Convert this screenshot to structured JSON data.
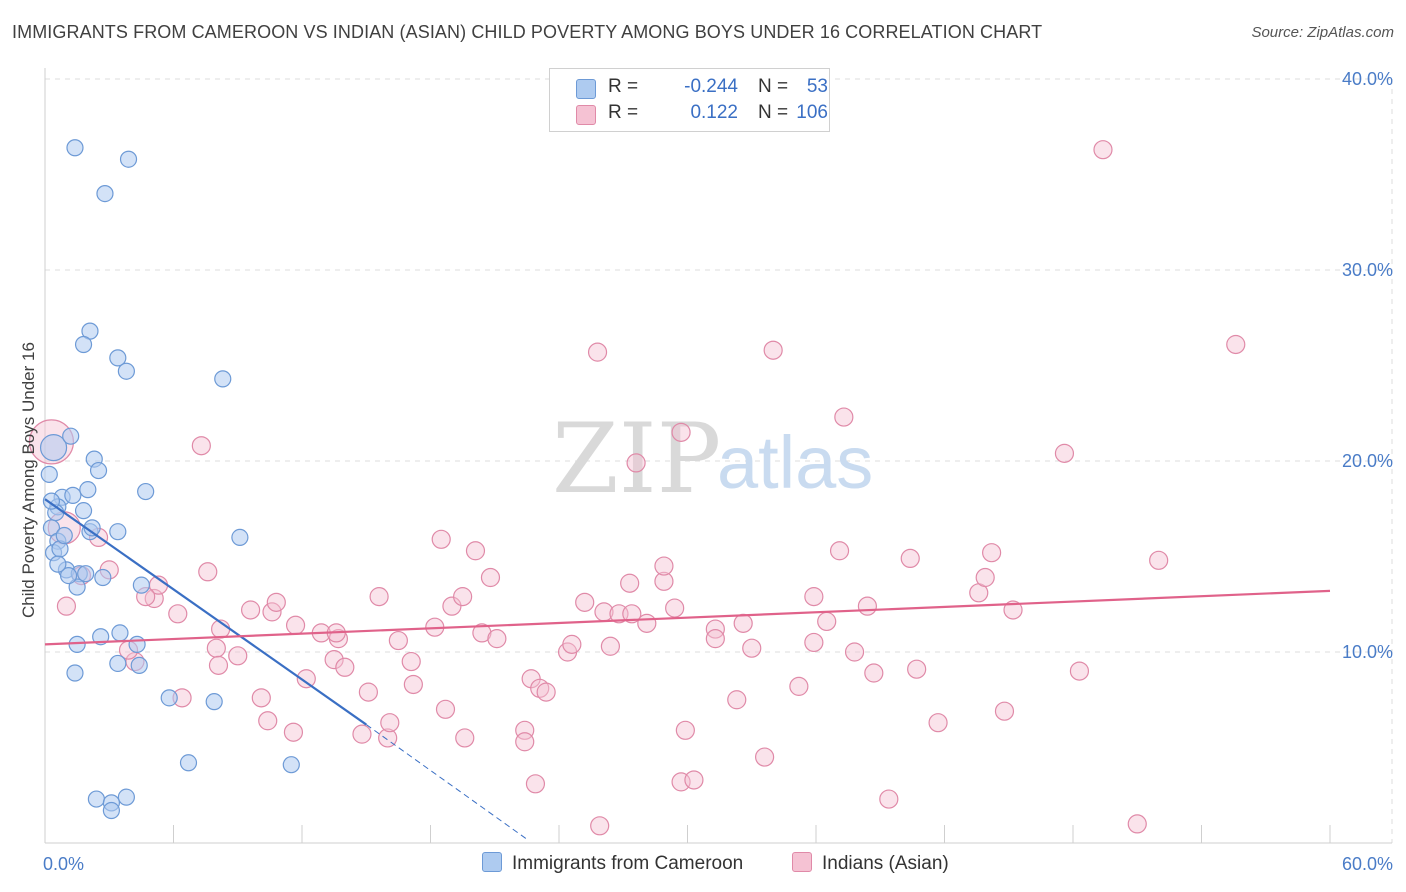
{
  "title": "IMMIGRANTS FROM CAMEROON VS INDIAN (ASIAN) CHILD POVERTY AMONG BOYS UNDER 16 CORRELATION CHART",
  "source": "Source: ZipAtlas.com",
  "watermark": {
    "zip": "ZIP",
    "atlas": "atlas"
  },
  "colors": {
    "blue_fill": "#aecbf0",
    "blue_stroke": "#6d9ad6",
    "blue_line": "#3a6fc4",
    "pink_fill": "#f5c2d3",
    "pink_stroke": "#e08aa8",
    "pink_line": "#e0628a",
    "tick_text": "#4a7cc7",
    "grid": "#dcdcdc"
  },
  "legend": {
    "rows": [
      {
        "r_label": "R =",
        "r_value": "-0.244",
        "n_label": "N =",
        "n_value": "53"
      },
      {
        "r_label": "R =",
        "r_value": "0.122",
        "n_label": "N =",
        "n_value": "106"
      }
    ]
  },
  "bottom_legend": [
    "Immigrants from Cameroon",
    "Indians (Asian)"
  ],
  "chart_data": {
    "type": "scatter",
    "title": "IMMIGRANTS FROM CAMEROON VS INDIAN (ASIAN) CHILD POVERTY AMONG BOYS UNDER 16 CORRELATION CHART",
    "xlabel": "",
    "ylabel": "Child Poverty Among Boys Under 16",
    "xlim": [
      0,
      60
    ],
    "ylim": [
      0,
      40
    ],
    "x_tick_labels": [
      "0.0%",
      "60.0%"
    ],
    "y_tick_labels": [
      "10.0%",
      "20.0%",
      "30.0%",
      "40.0%"
    ],
    "y_ticks": [
      10,
      20,
      30,
      40
    ],
    "grid": true,
    "series": [
      {
        "name": "Immigrants from Cameroon",
        "color": "blue",
        "R": -0.244,
        "N": 53,
        "points": [
          [
            1.4,
            36.4
          ],
          [
            3.9,
            35.8
          ],
          [
            2.8,
            34.0
          ],
          [
            2.1,
            26.8
          ],
          [
            1.8,
            26.1
          ],
          [
            3.4,
            25.4
          ],
          [
            3.8,
            24.7
          ],
          [
            8.3,
            24.3
          ],
          [
            0.4,
            20.7
          ],
          [
            1.2,
            21.3
          ],
          [
            2.3,
            20.1
          ],
          [
            2.5,
            19.5
          ],
          [
            0.2,
            19.3
          ],
          [
            2.0,
            18.5
          ],
          [
            4.7,
            18.4
          ],
          [
            0.8,
            18.1
          ],
          [
            0.6,
            17.6
          ],
          [
            1.8,
            17.4
          ],
          [
            0.3,
            16.5
          ],
          [
            2.1,
            16.3
          ],
          [
            3.4,
            16.3
          ],
          [
            9.1,
            16.0
          ],
          [
            0.6,
            15.8
          ],
          [
            0.4,
            15.2
          ],
          [
            1.0,
            14.3
          ],
          [
            1.6,
            14.1
          ],
          [
            1.9,
            14.1
          ],
          [
            1.5,
            13.4
          ],
          [
            4.5,
            13.5
          ],
          [
            3.5,
            11.0
          ],
          [
            2.6,
            10.8
          ],
          [
            1.5,
            10.4
          ],
          [
            4.3,
            10.4
          ],
          [
            3.4,
            9.4
          ],
          [
            4.4,
            9.3
          ],
          [
            1.4,
            8.9
          ],
          [
            5.8,
            7.6
          ],
          [
            7.9,
            7.4
          ],
          [
            6.7,
            4.2
          ],
          [
            11.5,
            4.1
          ],
          [
            2.4,
            2.3
          ],
          [
            3.8,
            2.4
          ],
          [
            3.1,
            2.1
          ],
          [
            3.1,
            1.7
          ],
          [
            0.5,
            17.3
          ],
          [
            1.1,
            14.0
          ],
          [
            0.7,
            15.4
          ],
          [
            2.7,
            13.9
          ],
          [
            0.9,
            16.1
          ],
          [
            1.3,
            18.2
          ],
          [
            2.2,
            16.5
          ],
          [
            0.3,
            17.9
          ],
          [
            0.6,
            14.6
          ]
        ],
        "trend": {
          "x": [
            0,
            15
          ],
          "y": [
            18.0,
            6.2
          ],
          "dashed_to": [
            22.5,
            0.2
          ]
        }
      },
      {
        "name": "Indians (Asian)",
        "color": "pink",
        "R": 0.122,
        "N": 106,
        "points": [
          [
            1.0,
            12.4
          ],
          [
            2.5,
            16.0
          ],
          [
            3.0,
            14.3
          ],
          [
            5.1,
            12.8
          ],
          [
            5.3,
            13.5
          ],
          [
            6.2,
            12.0
          ],
          [
            7.3,
            20.8
          ],
          [
            8.2,
            11.2
          ],
          [
            8.0,
            10.2
          ],
          [
            8.1,
            9.3
          ],
          [
            9.0,
            9.8
          ],
          [
            10.6,
            12.1
          ],
          [
            10.8,
            12.6
          ],
          [
            11.7,
            11.4
          ],
          [
            12.2,
            8.6
          ],
          [
            12.9,
            11.0
          ],
          [
            13.5,
            9.6
          ],
          [
            14.0,
            9.2
          ],
          [
            13.7,
            10.7
          ],
          [
            13.6,
            11.0
          ],
          [
            10.1,
            7.6
          ],
          [
            10.4,
            6.4
          ],
          [
            11.6,
            5.8
          ],
          [
            14.8,
            5.7
          ],
          [
            15.1,
            7.9
          ],
          [
            16.0,
            5.5
          ],
          [
            16.1,
            6.3
          ],
          [
            16.5,
            10.6
          ],
          [
            17.1,
            9.5
          ],
          [
            17.2,
            8.3
          ],
          [
            18.2,
            11.3
          ],
          [
            18.5,
            15.9
          ],
          [
            18.7,
            7.0
          ],
          [
            19.0,
            12.4
          ],
          [
            19.5,
            12.9
          ],
          [
            19.6,
            5.5
          ],
          [
            20.1,
            15.3
          ],
          [
            20.4,
            11.0
          ],
          [
            20.8,
            13.9
          ],
          [
            21.1,
            10.7
          ],
          [
            22.4,
            5.9
          ],
          [
            22.4,
            5.3
          ],
          [
            22.7,
            8.6
          ],
          [
            22.9,
            3.1
          ],
          [
            23.1,
            8.1
          ],
          [
            23.4,
            7.9
          ],
          [
            24.4,
            10.0
          ],
          [
            24.6,
            10.4
          ],
          [
            25.2,
            12.6
          ],
          [
            25.8,
            25.7
          ],
          [
            26.1,
            12.1
          ],
          [
            26.4,
            10.3
          ],
          [
            26.8,
            12.0
          ],
          [
            27.3,
            13.6
          ],
          [
            27.4,
            12.0
          ],
          [
            27.6,
            19.9
          ],
          [
            28.1,
            11.5
          ],
          [
            28.9,
            13.7
          ],
          [
            28.9,
            14.5
          ],
          [
            29.4,
            12.3
          ],
          [
            29.7,
            21.5
          ],
          [
            29.7,
            3.2
          ],
          [
            29.9,
            5.9
          ],
          [
            30.3,
            3.3
          ],
          [
            31.3,
            11.2
          ],
          [
            31.3,
            10.7
          ],
          [
            32.6,
            11.5
          ],
          [
            32.3,
            7.5
          ],
          [
            33.0,
            10.2
          ],
          [
            34.0,
            25.8
          ],
          [
            33.6,
            4.5
          ],
          [
            35.2,
            8.2
          ],
          [
            35.9,
            12.9
          ],
          [
            35.9,
            10.5
          ],
          [
            36.5,
            11.6
          ],
          [
            37.3,
            22.3
          ],
          [
            37.1,
            15.3
          ],
          [
            37.8,
            10.0
          ],
          [
            38.4,
            12.4
          ],
          [
            38.7,
            8.9
          ],
          [
            39.4,
            2.3
          ],
          [
            40.4,
            14.9
          ],
          [
            40.7,
            9.1
          ],
          [
            41.7,
            6.3
          ],
          [
            43.6,
            13.1
          ],
          [
            43.9,
            13.9
          ],
          [
            44.2,
            15.2
          ],
          [
            44.8,
            6.9
          ],
          [
            45.2,
            12.2
          ],
          [
            47.6,
            20.4
          ],
          [
            48.3,
            9.0
          ],
          [
            49.4,
            36.3
          ],
          [
            51.0,
            1.0
          ],
          [
            52.0,
            14.8
          ],
          [
            55.6,
            26.1
          ],
          [
            25.9,
            0.9
          ],
          [
            7.6,
            14.2
          ],
          [
            4.2,
            9.5
          ],
          [
            6.4,
            7.6
          ],
          [
            9.6,
            12.2
          ],
          [
            0.3,
            21.0
          ],
          [
            0.9,
            16.5
          ],
          [
            1.7,
            14.0
          ],
          [
            3.9,
            10.1
          ],
          [
            4.7,
            12.9
          ],
          [
            15.6,
            12.9
          ]
        ],
        "trend": {
          "x": [
            0,
            60
          ],
          "y": [
            10.4,
            13.2
          ]
        }
      }
    ]
  }
}
